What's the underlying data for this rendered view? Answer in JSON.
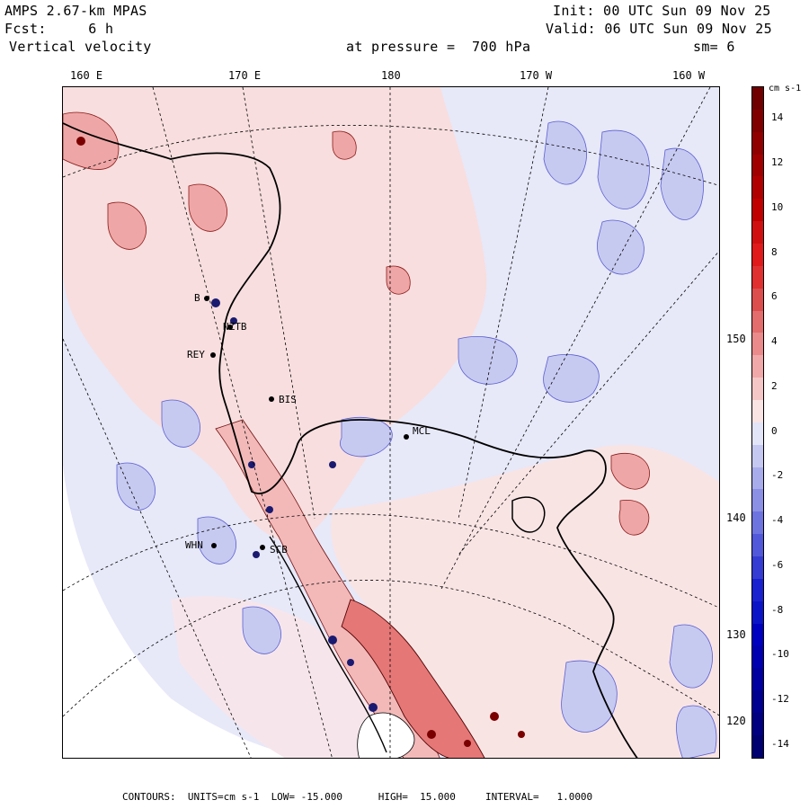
{
  "header": {
    "model": "AMPS 2.67-km MPAS",
    "forecast": "Fcst:     6 h",
    "field": "Vertical velocity",
    "init": "Init: 00 UTC Sun 09 Nov 25",
    "valid": "Valid: 06 UTC Sun 09 Nov 25",
    "level": "at pressure =  700 hPa",
    "smoothing": "sm= 6"
  },
  "longitude_labels": [
    "160 E",
    "170 E",
    "180",
    "170 W",
    "160 W"
  ],
  "latitude_labels": [
    "150 W",
    "140 W",
    "130 W",
    "120 W"
  ],
  "stations": [
    "B",
    "NZTB",
    "REY",
    "BIS",
    "MCL",
    "WHN",
    "SCB"
  ],
  "colorbar": {
    "units": "cm s-1",
    "tick_labels": [
      "14",
      "12",
      "10",
      "8",
      "6",
      "4",
      "2",
      "0",
      "-2",
      "-4",
      "-6",
      "-8",
      "-10",
      "-12",
      "-14"
    ],
    "levels": [
      -15,
      -14,
      -13,
      -12,
      -11,
      -10,
      -9,
      -8,
      -7,
      -6,
      -5,
      -4,
      -3,
      -2,
      -1,
      0,
      1,
      2,
      3,
      4,
      5,
      6,
      7,
      8,
      9,
      10,
      11,
      12,
      13,
      14,
      15
    ],
    "colors_positive": [
      "#f9e3e3",
      "#f5c6c6",
      "#f0a8a8",
      "#ea8a8a",
      "#e36c6c",
      "#dc4e4e",
      "#e03030",
      "#e01a1a",
      "#d01010",
      "#c00000",
      "#b00000",
      "#a00000",
      "#900000",
      "#800000",
      "#700000"
    ],
    "colors_negative": [
      "#e2e4f7",
      "#c5c8f0",
      "#a8aceb",
      "#8b90e5",
      "#6e74df",
      "#5158d9",
      "#343cd3",
      "#1a22cf",
      "#0c14c8",
      "#0000c0",
      "#0000b0",
      "#0000a0",
      "#000090",
      "#000080",
      "#000070"
    ]
  },
  "footer": {
    "text": "CONTOURS:  UNITS=cm s-1  LOW= -15.000      HIGH=  15.000     INTERVAL=   1.0000"
  }
}
